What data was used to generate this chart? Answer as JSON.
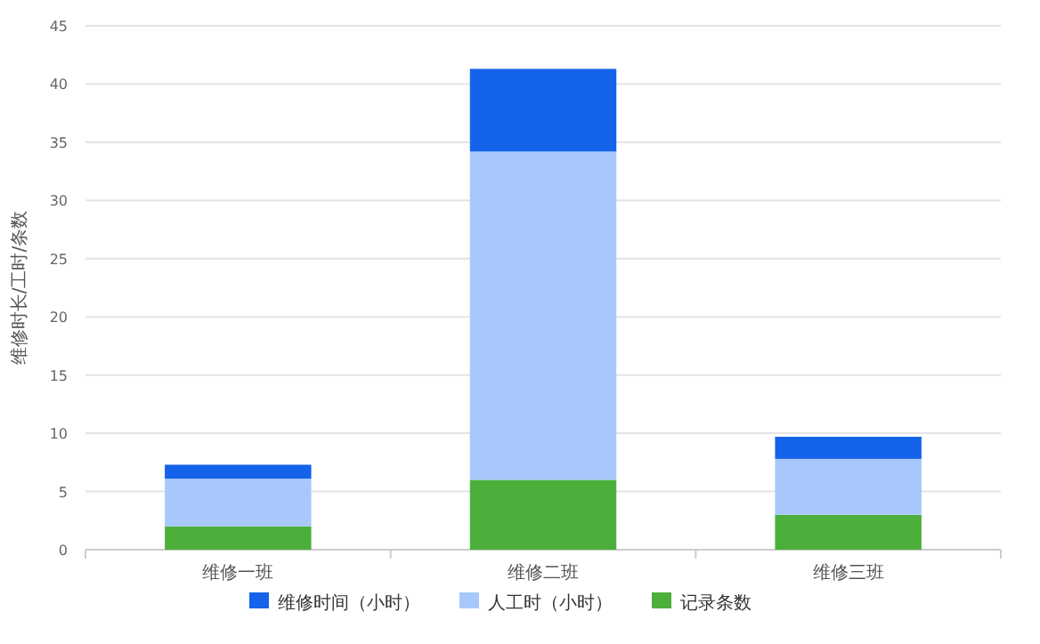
{
  "chart_data": {
    "type": "bar",
    "stacked": true,
    "ylabel": "维修时长/工时/条数",
    "categories": [
      "维修一班",
      "维修二班",
      "维修三班"
    ],
    "series": [
      {
        "name": "记录条数",
        "color": "#4caf3c",
        "values": [
          2,
          6,
          3
        ]
      },
      {
        "name": "人工时（小时）",
        "color": "#a8c8fb",
        "values": [
          4.1,
          28.2,
          4.8
        ]
      },
      {
        "name": "维修时间（小时）",
        "color": "#1463ea",
        "values": [
          1.2,
          7.1,
          1.9
        ]
      }
    ],
    "ylim": [
      0,
      45
    ],
    "yticks": [
      0,
      5,
      10,
      15,
      20,
      25,
      30,
      35,
      40,
      45
    ],
    "grid": "y",
    "legend": "bottom"
  }
}
